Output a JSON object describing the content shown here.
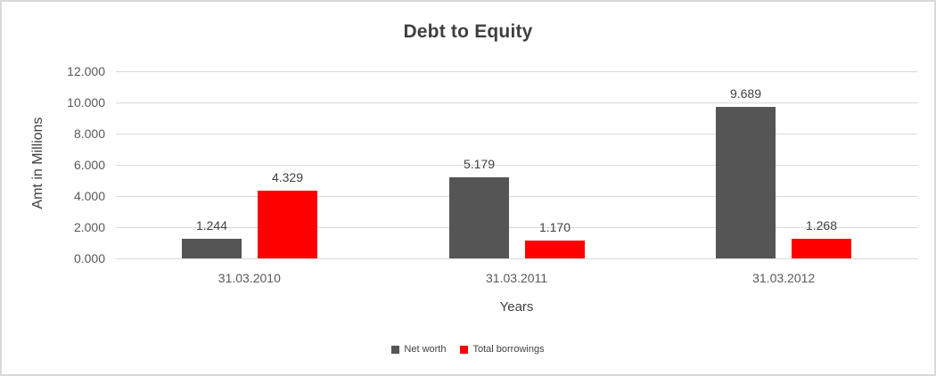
{
  "title": "Debt to Equity",
  "y_axis": {
    "title": "Amt in Millions",
    "ticks": [
      "12.000",
      "10.000",
      "8.000",
      "6.000",
      "4.000",
      "2.000",
      "0.000"
    ]
  },
  "x_axis": {
    "title": "Years",
    "categories": [
      "31.03.2010",
      "31.03.2011",
      "31.03.2012"
    ]
  },
  "legend": {
    "items": [
      {
        "label": "Net worth",
        "color": "#555555"
      },
      {
        "label": "Total borrowings",
        "color": "#ff0000"
      }
    ]
  },
  "colors": {
    "grid": "#d9d9d9",
    "border": "#d9d9d9",
    "title_text": "#3f3f3f",
    "axis_text": "#595959",
    "label_text": "#404040"
  },
  "chart_data": {
    "type": "bar",
    "title": "Debt to Equity",
    "xlabel": "Years",
    "ylabel": "Amt in Millions",
    "categories": [
      "31.03.2010",
      "31.03.2011",
      "31.03.2012"
    ],
    "series": [
      {
        "name": "Net worth",
        "color": "#555555",
        "values": [
          1.244,
          5.179,
          9.689
        ],
        "data_labels": [
          "1.244",
          "5.179",
          "9.689"
        ]
      },
      {
        "name": "Total borrowings",
        "color": "#ff0000",
        "values": [
          4.329,
          1.17,
          1.268
        ],
        "data_labels": [
          "4.329",
          "1.170",
          "1.268"
        ]
      }
    ],
    "ylim": [
      0,
      12
    ],
    "ytick_step": 2,
    "grid": true,
    "legend_position": "bottom-center"
  }
}
